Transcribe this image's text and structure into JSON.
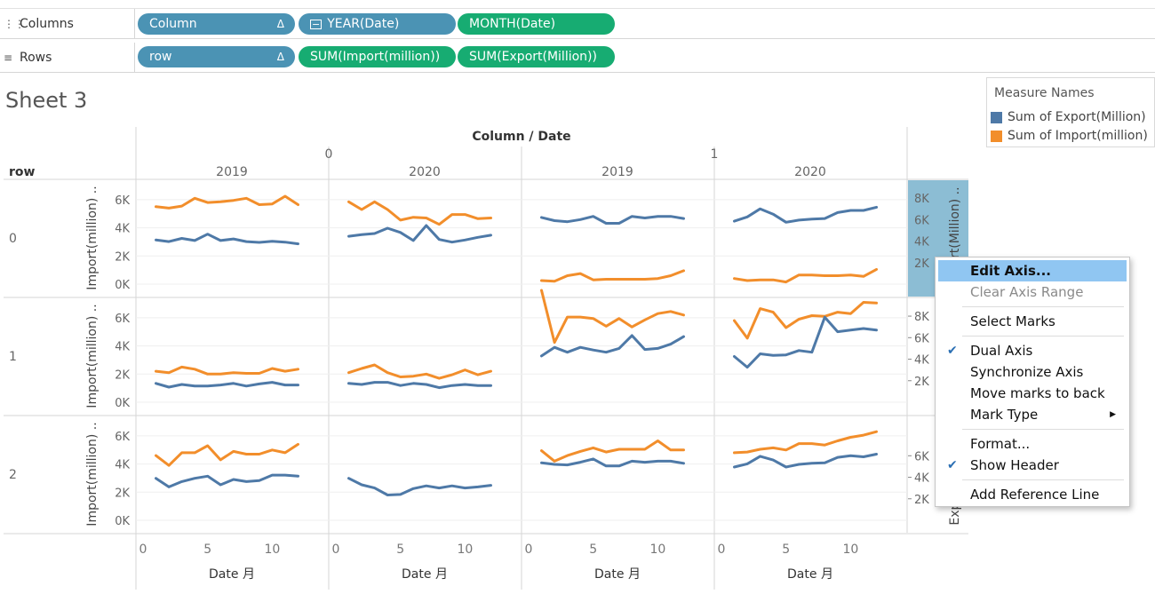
{
  "shelves": {
    "columns": {
      "label": "Columns",
      "icon": "columns-icon",
      "pills": [
        "Column",
        "YEAR(Date)",
        "MONTH(Date)"
      ]
    },
    "rows": {
      "label": "Rows",
      "icon": "rows-icon",
      "pills": [
        "row",
        "SUM(Import(million))",
        "SUM(Export(Million))"
      ]
    },
    "delta_glyph": "Δ"
  },
  "sheet": {
    "title": "Sheet 3",
    "column_header_title": "Column / Date",
    "column_values": [
      "0",
      "1"
    ],
    "years": [
      "2019",
      "2020",
      "2019",
      "2020"
    ],
    "row_header_title": "row",
    "row_values": [
      "0",
      "1",
      "2"
    ],
    "left_axis_title": "Import(million) ..",
    "right_axis_title": "Export(Million) ..",
    "x_axis_title": "Date 月"
  },
  "legend": {
    "title": "Measure Names",
    "items": [
      {
        "label": "Sum of Export(Million)",
        "color": "#4e79a7"
      },
      {
        "label": "Sum of Import(million)",
        "color": "#f28e2b"
      }
    ]
  },
  "context_menu": {
    "items": [
      {
        "label": "Edit Axis...",
        "state": "highlighted"
      },
      {
        "label": "Clear Axis Range",
        "state": "disabled"
      },
      {
        "separator": true
      },
      {
        "label": "Select Marks"
      },
      {
        "separator": true
      },
      {
        "label": "Dual Axis",
        "checked": true
      },
      {
        "label": "Synchronize Axis"
      },
      {
        "label": "Move marks to back"
      },
      {
        "label": "Mark Type",
        "submenu": true
      },
      {
        "separator": true
      },
      {
        "label": "Format..."
      },
      {
        "label": "Show Header",
        "checked": true
      },
      {
        "separator": true
      },
      {
        "label": "Add Reference Line"
      }
    ]
  },
  "chart_data": {
    "type": "line",
    "x_axis": {
      "title": "Date 月",
      "ticks": [
        "0",
        "5",
        "10"
      ],
      "range": [
        0,
        13
      ]
    },
    "left_axis": {
      "title": "Import(million) ..",
      "ticks": [
        "0K",
        "2K",
        "4K",
        "6K"
      ],
      "range": [
        0,
        6500
      ]
    },
    "right_axis": {
      "title": "Export(Million) ..",
      "ticks_by_row": [
        [
          "2K",
          "4K",
          "6K",
          "8K"
        ],
        [
          "2K",
          "4K",
          "6K",
          "8K"
        ],
        [
          "2K",
          "4K",
          "6K"
        ]
      ],
      "range": [
        0,
        8500
      ]
    },
    "colors": {
      "export": "#4e79a7",
      "import": "#f28e2b"
    },
    "panels": [
      {
        "row": "0",
        "column": "0",
        "year": "2019",
        "export": [
          4100,
          3950,
          4250,
          4050,
          4650,
          4050,
          4200,
          3950,
          3880,
          3980,
          3900,
          3750
        ],
        "import": [
          5500,
          5400,
          5550,
          6100,
          5800,
          5850,
          5950,
          6100,
          5650,
          5700,
          6250,
          5650
        ]
      },
      {
        "row": "0",
        "column": "0",
        "year": "2020",
        "export": [
          4450,
          4600,
          4700,
          5200,
          4800,
          4050,
          5450,
          4150,
          3900,
          4100,
          4350,
          4550
        ],
        "import": [
          5850,
          5300,
          5850,
          5300,
          4550,
          4750,
          4700,
          4250,
          4950,
          4950,
          4650,
          4700
        ]
      },
      {
        "row": "0",
        "column": "1",
        "year": "2019",
        "export": [
          6200,
          5900,
          5800,
          6000,
          6300,
          5650,
          5650,
          6300,
          6150,
          6300,
          6300,
          6100
        ],
        "import": [
          250,
          200,
          600,
          750,
          300,
          350,
          350,
          350,
          350,
          400,
          600,
          950
        ]
      },
      {
        "row": "0",
        "column": "1",
        "year": "2020",
        "export": [
          5850,
          6250,
          7000,
          6500,
          5750,
          5950,
          6050,
          6100,
          6650,
          6850,
          6850,
          7150
        ],
        "import": [
          400,
          250,
          300,
          300,
          150,
          650,
          650,
          600,
          600,
          650,
          550,
          1050
        ]
      },
      {
        "row": "1",
        "column": "0",
        "year": "2019",
        "export": [
          1750,
          1400,
          1650,
          1500,
          1500,
          1600,
          1750,
          1500,
          1700,
          1850,
          1600,
          1600
        ],
        "import": [
          2200,
          2100,
          2500,
          2350,
          2000,
          2000,
          2100,
          2050,
          2050,
          2400,
          2200,
          2350
        ]
      },
      {
        "row": "1",
        "column": "0",
        "year": "2020",
        "export": [
          1750,
          1650,
          1850,
          1850,
          1550,
          1750,
          1650,
          1350,
          1550,
          1650,
          1550,
          1550
        ],
        "import": [
          2100,
          2400,
          2650,
          2100,
          1800,
          1850,
          2000,
          1700,
          1950,
          2300,
          1950,
          2200
        ]
      },
      {
        "row": "1",
        "column": "1",
        "year": "2019",
        "export": [
          4300,
          5100,
          4650,
          5100,
          4850,
          4650,
          5000,
          6200,
          4900,
          5000,
          5400,
          6100
        ],
        "import": [
          7950,
          4250,
          6050,
          6050,
          5950,
          5400,
          5950,
          5350,
          5850,
          6300,
          6450,
          6200
        ]
      },
      {
        "row": "1",
        "column": "1",
        "year": "2020",
        "export": [
          4250,
          3250,
          4500,
          4350,
          4400,
          4800,
          4650,
          7900,
          6550,
          6700,
          6850,
          6700
        ],
        "import": [
          5800,
          4550,
          6650,
          6400,
          5300,
          5900,
          6150,
          6100,
          6400,
          6300,
          7100,
          7050
        ]
      },
      {
        "row": "2",
        "column": "0",
        "year": "2019",
        "export": [
          3900,
          3100,
          3600,
          3900,
          4100,
          3300,
          3800,
          3600,
          3700,
          4200,
          4200,
          4100
        ],
        "import": [
          4600,
          3900,
          4800,
          4800,
          5300,
          4300,
          4900,
          4700,
          4700,
          5000,
          4800,
          5400
        ]
      },
      {
        "row": "2",
        "column": "0",
        "year": "2020",
        "export": [
          3900,
          3300,
          3000,
          2350,
          2400,
          2950,
          3200,
          3000,
          3200,
          3000,
          3100,
          3250
        ]
      },
      {
        "row": "2",
        "column": "1",
        "year": "2019",
        "export": [
          5350,
          5200,
          5150,
          5400,
          5700,
          5050,
          5050,
          5500,
          5400,
          5500,
          5500,
          5300
        ],
        "import": [
          4950,
          4200,
          4600,
          4900,
          5150,
          4850,
          5050,
          5050,
          5050,
          5650,
          5000,
          5000
        ]
      },
      {
        "row": "2",
        "column": "1",
        "year": "2020",
        "export": [
          4950,
          5250,
          5950,
          5600,
          4950,
          5200,
          5300,
          5350,
          5850,
          6000,
          5900,
          6150
        ],
        "import": [
          4800,
          4850,
          5050,
          5150,
          5000,
          5450,
          5450,
          5350,
          5650,
          5900,
          6050,
          6300
        ]
      }
    ]
  }
}
